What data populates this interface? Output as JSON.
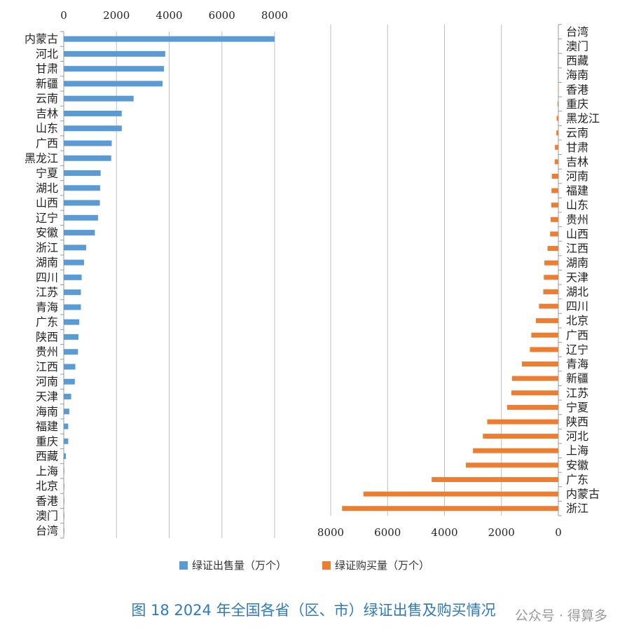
{
  "caption": "图 18 2024 年全国各省（区、市）绿证出售及购买情况",
  "watermark": "公众号 · 得算多",
  "colors": {
    "sell": "#5b9bd5",
    "buy": "#ed7d31",
    "grid": "#bfbfbf",
    "axis": "#999999"
  },
  "chart_data": [
    {
      "type": "bar",
      "orientation": "horizontal",
      "xlim": [
        0,
        8000
      ],
      "ticks": [
        0,
        2000,
        4000,
        6000,
        8000
      ],
      "tick_position": "top",
      "categories": [
        "内蒙古",
        "河北",
        "甘肃",
        "新疆",
        "云南",
        "吉林",
        "山东",
        "广西",
        "黑龙江",
        "宁夏",
        "湖北",
        "山西",
        "辽宁",
        "安徽",
        "浙江",
        "湖南",
        "四川",
        "江苏",
        "青海",
        "广东",
        "陕西",
        "贵州",
        "江西",
        "河南",
        "天津",
        "海南",
        "福建",
        "重庆",
        "西藏",
        "上海",
        "北京",
        "香港",
        "澳门",
        "台湾"
      ],
      "series": [
        {
          "name": "绿证出售量（万个）",
          "values": [
            8000,
            3850,
            3800,
            3750,
            2650,
            2200,
            2200,
            1820,
            1800,
            1400,
            1380,
            1370,
            1300,
            1180,
            850,
            770,
            680,
            650,
            650,
            590,
            560,
            540,
            440,
            420,
            280,
            210,
            170,
            170,
            80,
            20,
            15,
            15,
            10,
            10
          ]
        }
      ]
    },
    {
      "type": "bar",
      "orientation": "horizontal",
      "x_reversed": true,
      "xlim": [
        0,
        8000
      ],
      "ticks": [
        8000,
        6000,
        4000,
        2000,
        0
      ],
      "tick_position": "bottom",
      "categories": [
        "台湾",
        "澳门",
        "西藏",
        "海南",
        "香港",
        "重庆",
        "黑龙江",
        "云南",
        "甘肃",
        "吉林",
        "河南",
        "福建",
        "山东",
        "贵州",
        "山西",
        "江西",
        "湖南",
        "天津",
        "湖北",
        "四川",
        "北京",
        "广西",
        "辽宁",
        "青海",
        "新疆",
        "江苏",
        "宁夏",
        "陕西",
        "河北",
        "上海",
        "安徽",
        "广东",
        "内蒙古",
        "浙江"
      ],
      "series": [
        {
          "name": "绿证购买量（万个）",
          "values": [
            0,
            0,
            0,
            0,
            10,
            30,
            60,
            70,
            120,
            130,
            230,
            240,
            250,
            270,
            290,
            380,
            490,
            510,
            530,
            680,
            790,
            950,
            1000,
            1280,
            1630,
            1650,
            1800,
            2500,
            2650,
            3000,
            3250,
            4450,
            6850,
            7600
          ]
        }
      ]
    }
  ],
  "legend": [
    {
      "label": "绿证出售量（万个）",
      "series": "sell"
    },
    {
      "label": "绿证购买量（万个）",
      "series": "buy"
    }
  ]
}
